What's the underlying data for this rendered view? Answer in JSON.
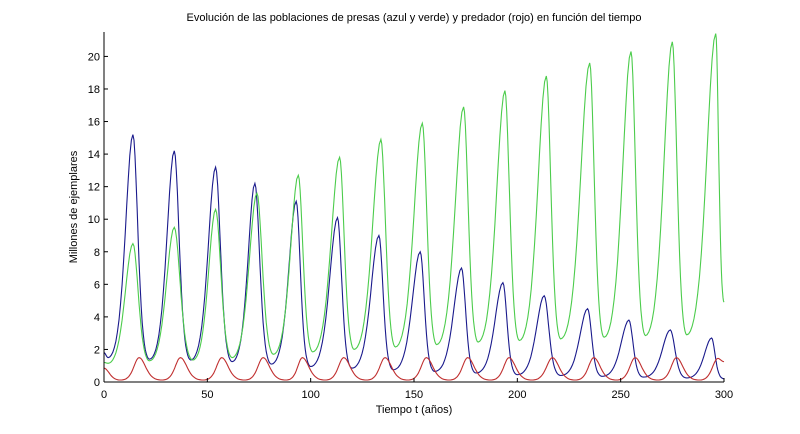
{
  "chart_data": {
    "type": "line",
    "title": "Evolución de las poblaciones de presas (azul y verde) y predador (rojo) en función del tiempo",
    "xlabel": "Tiempo t (años)",
    "ylabel": "Millones de ejemplares",
    "xlim": [
      0,
      300
    ],
    "ylim": [
      0,
      21.5
    ],
    "xticks": [
      "0",
      "50",
      "100",
      "150",
      "200",
      "250",
      "300"
    ],
    "xtick_values": [
      0,
      50,
      100,
      150,
      200,
      250,
      300
    ],
    "yticks": [
      "0",
      "2",
      "4",
      "6",
      "8",
      "10",
      "12",
      "14",
      "16",
      "18",
      "20"
    ],
    "ytick_values": [
      0,
      2,
      4,
      6,
      8,
      10,
      12,
      14,
      16,
      18,
      20
    ],
    "grid": false,
    "series": [
      {
        "name": "presa azul",
        "color": "#1a1a8c",
        "points": [
          [
            0,
            1.8
          ],
          [
            2,
            1.5
          ],
          [
            14,
            15.2
          ],
          [
            22,
            1.4
          ],
          [
            34,
            14.2
          ],
          [
            42,
            1.35
          ],
          [
            54,
            13.2
          ],
          [
            62,
            1.25
          ],
          [
            73,
            12.2
          ],
          [
            81,
            1.1
          ],
          [
            93,
            11.1
          ],
          [
            100,
            0.95
          ],
          [
            113,
            10.1
          ],
          [
            120,
            0.85
          ],
          [
            133,
            9.0
          ],
          [
            140,
            0.75
          ],
          [
            153,
            8.0
          ],
          [
            160,
            0.65
          ],
          [
            173,
            7.0
          ],
          [
            180,
            0.55
          ],
          [
            193,
            6.1
          ],
          [
            200,
            0.45
          ],
          [
            213,
            5.3
          ],
          [
            221,
            0.4
          ],
          [
            234,
            4.5
          ],
          [
            241,
            0.35
          ],
          [
            254,
            3.8
          ],
          [
            261,
            0.3
          ],
          [
            274,
            3.2
          ],
          [
            282,
            0.25
          ],
          [
            294,
            2.7
          ],
          [
            300,
            0.2
          ]
        ]
      },
      {
        "name": "presa verde",
        "color": "#4ccc4c",
        "points": [
          [
            0,
            1.2
          ],
          [
            2,
            1.15
          ],
          [
            14,
            8.5
          ],
          [
            22,
            1.3
          ],
          [
            34,
            9.5
          ],
          [
            43,
            1.35
          ],
          [
            54,
            10.6
          ],
          [
            62,
            1.5
          ],
          [
            74,
            11.6
          ],
          [
            82,
            1.7
          ],
          [
            94,
            12.7
          ],
          [
            101,
            1.85
          ],
          [
            114,
            13.8
          ],
          [
            121,
            2.0
          ],
          [
            134,
            14.9
          ],
          [
            141,
            2.15
          ],
          [
            154,
            15.9
          ],
          [
            161,
            2.3
          ],
          [
            174,
            16.9
          ],
          [
            181,
            2.45
          ],
          [
            194,
            17.9
          ],
          [
            201,
            2.55
          ],
          [
            214,
            18.8
          ],
          [
            221,
            2.65
          ],
          [
            235,
            19.6
          ],
          [
            242,
            2.75
          ],
          [
            255,
            20.3
          ],
          [
            262,
            2.85
          ],
          [
            275,
            20.9
          ],
          [
            282,
            2.9
          ],
          [
            296,
            21.4
          ],
          [
            300,
            4.9
          ]
        ]
      },
      {
        "name": "predador rojo",
        "color": "#c03030",
        "points": [
          [
            0,
            0.85
          ],
          [
            8,
            0.12
          ],
          [
            17,
            1.5
          ],
          [
            28,
            0.12
          ],
          [
            37,
            1.5
          ],
          [
            48,
            0.12
          ],
          [
            57,
            1.5
          ],
          [
            68,
            0.12
          ],
          [
            77,
            1.5
          ],
          [
            88,
            0.12
          ],
          [
            96,
            1.5
          ],
          [
            107,
            0.12
          ],
          [
            116,
            1.5
          ],
          [
            127,
            0.12
          ],
          [
            136,
            1.5
          ],
          [
            147,
            0.12
          ],
          [
            156,
            1.5
          ],
          [
            167,
            0.12
          ],
          [
            176,
            1.5
          ],
          [
            187,
            0.12
          ],
          [
            196,
            1.5
          ],
          [
            207,
            0.12
          ],
          [
            217,
            1.5
          ],
          [
            228,
            0.12
          ],
          [
            237,
            1.5
          ],
          [
            248,
            0.12
          ],
          [
            257,
            1.5
          ],
          [
            268,
            0.12
          ],
          [
            277,
            1.5
          ],
          [
            288,
            0.12
          ],
          [
            297,
            1.45
          ],
          [
            300,
            1.25
          ]
        ]
      }
    ]
  }
}
